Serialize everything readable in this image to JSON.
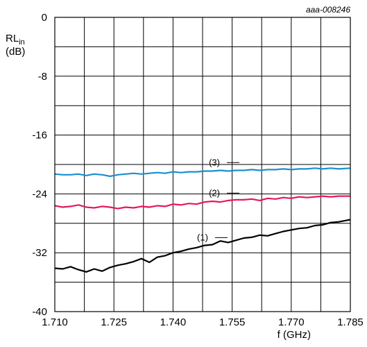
{
  "chart_data": {
    "type": "line",
    "figure_id": "aaa-008246",
    "ylabel_main": "RL",
    "ylabel_sub": "in",
    "ylabel_unit": "(dB)",
    "xlabel": "f (GHz)",
    "xlim": [
      1.71,
      1.785
    ],
    "ylim": [
      -40,
      0
    ],
    "xticks": [
      1.71,
      1.725,
      1.74,
      1.755,
      1.77,
      1.785
    ],
    "xtick_labels": [
      "1.710",
      "1.725",
      "1.740",
      "1.755",
      "1.770",
      "1.785"
    ],
    "yticks": [
      0,
      -8,
      -16,
      -24,
      -32,
      -40
    ],
    "ytick_labels": [
      "0",
      "-8",
      "-16",
      "-24",
      "-32",
      "-40"
    ],
    "grid": true,
    "series": [
      {
        "name": "(1)",
        "color": "#000000",
        "x": [
          1.71,
          1.712,
          1.714,
          1.716,
          1.718,
          1.72,
          1.722,
          1.724,
          1.726,
          1.728,
          1.73,
          1.732,
          1.734,
          1.736,
          1.738,
          1.74,
          1.742,
          1.744,
          1.746,
          1.748,
          1.75,
          1.752,
          1.754,
          1.756,
          1.758,
          1.76,
          1.762,
          1.764,
          1.766,
          1.768,
          1.77,
          1.772,
          1.774,
          1.776,
          1.778,
          1.78,
          1.782,
          1.785
        ],
        "y": [
          -34.1,
          -34.2,
          -33.9,
          -34.3,
          -34.6,
          -34.2,
          -34.5,
          -34.0,
          -33.7,
          -33.5,
          -33.2,
          -32.8,
          -33.3,
          -32.6,
          -32.4,
          -32.0,
          -31.8,
          -31.5,
          -31.3,
          -31.0,
          -30.9,
          -30.4,
          -30.6,
          -30.3,
          -30.0,
          -29.9,
          -29.6,
          -29.7,
          -29.4,
          -29.1,
          -28.9,
          -28.7,
          -28.6,
          -28.3,
          -28.2,
          -27.9,
          -27.8,
          -27.5
        ]
      },
      {
        "name": "(2)",
        "color": "#e6175c",
        "x": [
          1.71,
          1.712,
          1.714,
          1.716,
          1.718,
          1.72,
          1.722,
          1.724,
          1.726,
          1.728,
          1.73,
          1.732,
          1.734,
          1.736,
          1.738,
          1.74,
          1.742,
          1.744,
          1.746,
          1.748,
          1.75,
          1.752,
          1.754,
          1.756,
          1.758,
          1.76,
          1.762,
          1.764,
          1.766,
          1.768,
          1.77,
          1.772,
          1.774,
          1.776,
          1.778,
          1.78,
          1.782,
          1.785
        ],
        "y": [
          -25.6,
          -25.8,
          -25.7,
          -25.5,
          -25.8,
          -25.9,
          -25.7,
          -25.8,
          -26.0,
          -25.8,
          -25.9,
          -25.7,
          -25.8,
          -25.6,
          -25.7,
          -25.4,
          -25.5,
          -25.3,
          -25.4,
          -25.1,
          -25.0,
          -25.1,
          -24.9,
          -24.8,
          -24.8,
          -24.7,
          -24.9,
          -24.6,
          -24.7,
          -24.5,
          -24.6,
          -24.4,
          -24.5,
          -24.4,
          -24.3,
          -24.4,
          -24.3,
          -24.3
        ]
      },
      {
        "name": "(3)",
        "color": "#1a8fce",
        "x": [
          1.71,
          1.712,
          1.714,
          1.716,
          1.718,
          1.72,
          1.722,
          1.724,
          1.726,
          1.728,
          1.73,
          1.732,
          1.734,
          1.736,
          1.738,
          1.74,
          1.742,
          1.744,
          1.746,
          1.748,
          1.75,
          1.752,
          1.754,
          1.756,
          1.758,
          1.76,
          1.762,
          1.764,
          1.766,
          1.768,
          1.77,
          1.772,
          1.774,
          1.776,
          1.778,
          1.78,
          1.782,
          1.785
        ],
        "y": [
          -21.3,
          -21.4,
          -21.4,
          -21.3,
          -21.5,
          -21.3,
          -21.4,
          -21.6,
          -21.4,
          -21.3,
          -21.2,
          -21.3,
          -21.2,
          -21.1,
          -21.2,
          -21.0,
          -21.1,
          -21.0,
          -21.0,
          -20.9,
          -20.9,
          -20.8,
          -20.9,
          -20.8,
          -20.8,
          -20.7,
          -20.8,
          -20.7,
          -20.7,
          -20.6,
          -20.7,
          -20.6,
          -20.6,
          -20.5,
          -20.6,
          -20.5,
          -20.6,
          -20.5
        ]
      }
    ]
  }
}
